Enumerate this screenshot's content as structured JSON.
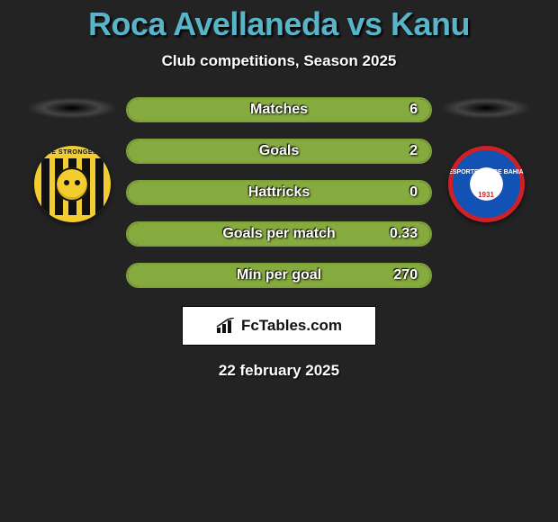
{
  "title": "Roca Avellaneda vs Kanu",
  "subtitle": "Club competitions, Season 2025",
  "date": "22 february 2025",
  "brand": "FcTables.com",
  "colors": {
    "title": "#58b4c9",
    "bar_border": "#80a03c",
    "bar_fill": "#85aa3e",
    "background": "#232323"
  },
  "left_team": {
    "name": "The Strongest",
    "crest_text": "HE STRONGES"
  },
  "right_team": {
    "name": "Esporte Clube Bahia",
    "crest_text": "ESPORTE CLUBE BAHIA",
    "crest_year": "1931"
  },
  "stats": [
    {
      "label": "Matches",
      "value": "6",
      "fill_pct": 100
    },
    {
      "label": "Goals",
      "value": "2",
      "fill_pct": 100
    },
    {
      "label": "Hattricks",
      "value": "0",
      "fill_pct": 100
    },
    {
      "label": "Goals per match",
      "value": "0.33",
      "fill_pct": 100
    },
    {
      "label": "Min per goal",
      "value": "270",
      "fill_pct": 100
    }
  ]
}
